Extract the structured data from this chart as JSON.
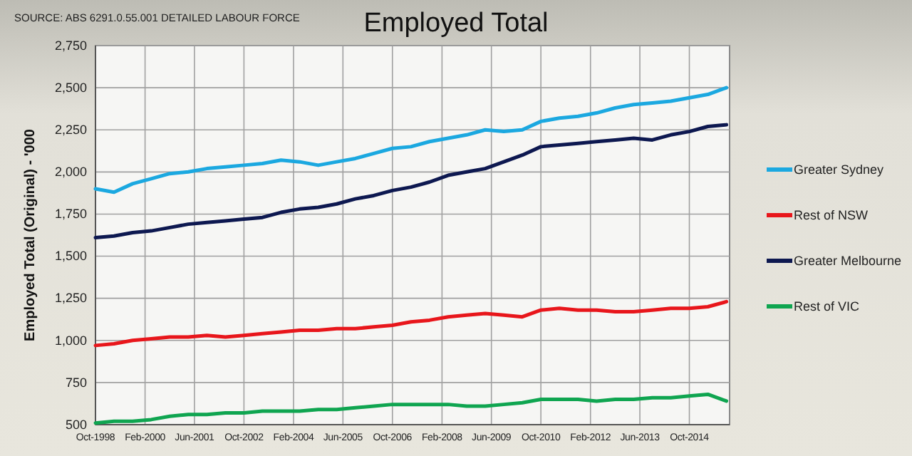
{
  "chart_data": {
    "type": "line",
    "title": "Employed Total",
    "ylabel": "Employed Total (Original) - '000",
    "annotations": [
      "SOURCE: ABS 6291.0.55.001 DETAILED LABOUR FORCE"
    ],
    "x": [
      "1998-10",
      "1999-04",
      "1999-10",
      "2000-04",
      "2000-10",
      "2001-04",
      "2001-10",
      "2002-04",
      "2002-10",
      "2003-04",
      "2003-10",
      "2004-04",
      "2004-10",
      "2005-04",
      "2005-10",
      "2006-04",
      "2006-10",
      "2007-04",
      "2007-10",
      "2008-04",
      "2008-10",
      "2009-04",
      "2009-10",
      "2010-04",
      "2010-10",
      "2011-04",
      "2011-10",
      "2012-04",
      "2012-10",
      "2013-04",
      "2013-10",
      "2014-04",
      "2014-10",
      "2015-04",
      "2015-10"
    ],
    "series": [
      {
        "name": "Greater Sydney",
        "color": "#1ba8e0",
        "values": [
          1900,
          1880,
          1930,
          1960,
          1990,
          2000,
          2020,
          2030,
          2040,
          2050,
          2070,
          2060,
          2040,
          2060,
          2080,
          2110,
          2140,
          2150,
          2180,
          2200,
          2220,
          2250,
          2240,
          2250,
          2300,
          2320,
          2330,
          2350,
          2380,
          2400,
          2410,
          2420,
          2440,
          2460,
          2500
        ]
      },
      {
        "name": "Rest of NSW",
        "color": "#e8161b",
        "values": [
          970,
          980,
          1000,
          1010,
          1020,
          1020,
          1030,
          1020,
          1030,
          1040,
          1050,
          1060,
          1060,
          1070,
          1070,
          1080,
          1090,
          1110,
          1120,
          1140,
          1150,
          1160,
          1150,
          1140,
          1180,
          1190,
          1180,
          1180,
          1170,
          1170,
          1180,
          1190,
          1190,
          1200,
          1230
        ]
      },
      {
        "name": "Greater Melbourne",
        "color": "#0d1850",
        "values": [
          1610,
          1620,
          1640,
          1650,
          1670,
          1690,
          1700,
          1710,
          1720,
          1730,
          1760,
          1780,
          1790,
          1810,
          1840,
          1860,
          1890,
          1910,
          1940,
          1980,
          2000,
          2020,
          2060,
          2100,
          2150,
          2160,
          2170,
          2180,
          2190,
          2200,
          2190,
          2220,
          2240,
          2270,
          2280
        ]
      },
      {
        "name": "Rest of VIC",
        "color": "#0fa550",
        "values": [
          510,
          520,
          520,
          530,
          550,
          560,
          560,
          570,
          570,
          580,
          580,
          580,
          590,
          590,
          600,
          610,
          620,
          620,
          620,
          620,
          610,
          610,
          620,
          630,
          650,
          650,
          650,
          640,
          650,
          650,
          660,
          660,
          670,
          680,
          640
        ]
      }
    ],
    "xlim": [
      "1998-10",
      "2015-11"
    ],
    "xticks": [
      {
        "value": "1998-10",
        "label": "Oct-1998"
      },
      {
        "value": "2000-02",
        "label": "Feb-2000"
      },
      {
        "value": "2001-06",
        "label": "Jun-2001"
      },
      {
        "value": "2002-10",
        "label": "Oct-2002"
      },
      {
        "value": "2004-02",
        "label": "Feb-2004"
      },
      {
        "value": "2005-06",
        "label": "Jun-2005"
      },
      {
        "value": "2006-10",
        "label": "Oct-2006"
      },
      {
        "value": "2008-02",
        "label": "Feb-2008"
      },
      {
        "value": "2009-06",
        "label": "Jun-2009"
      },
      {
        "value": "2010-10",
        "label": "Oct-2010"
      },
      {
        "value": "2012-02",
        "label": "Feb-2012"
      },
      {
        "value": "2013-06",
        "label": "Jun-2013"
      },
      {
        "value": "2014-10",
        "label": "Oct-2014"
      }
    ],
    "ylim": [
      500,
      2750
    ],
    "yticks": [
      {
        "value": 500,
        "label": "500"
      },
      {
        "value": 750,
        "label": "750"
      },
      {
        "value": 1000,
        "label": "1,000"
      },
      {
        "value": 1250,
        "label": "1,250"
      },
      {
        "value": 1500,
        "label": "1,500"
      },
      {
        "value": 1750,
        "label": "1,750"
      },
      {
        "value": 2000,
        "label": "2,000"
      },
      {
        "value": 2250,
        "label": "2,250"
      },
      {
        "value": 2500,
        "label": "2,500"
      },
      {
        "value": 2750,
        "label": "2,750"
      }
    ],
    "grid": true,
    "legend": "right",
    "marker": "none",
    "line_style": "solid"
  }
}
